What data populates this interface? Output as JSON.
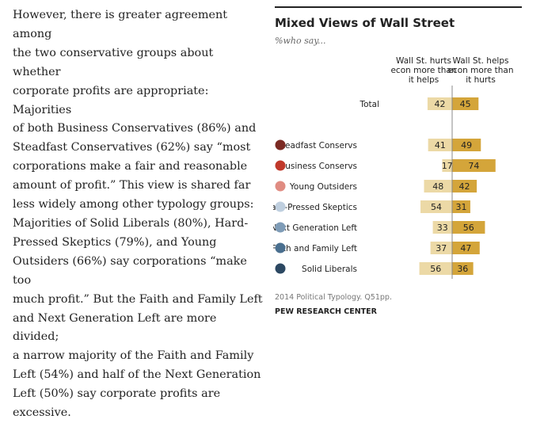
{
  "article": {
    "text": "However, there is greater agreement among\nthe two conservative groups about whether\ncorporate profits are appropriate: Majorities\nof both Business Conservatives (86%) and\nSteadfast Conservatives (62%) say “most\ncorporations make a fair and reasonable\namount of profit.” This view is shared far\nless widely among other typology groups:\nMajorities of Solid Liberals (80%), Hard-\nPressed Skeptics (79%), and Young\nOutsiders (66%) say corporations “make too\nmuch profit.” But the Faith and Family Left\nand Next Generation Left are more divided;\na narrow majority of the Faith and Family\nLeft (54%) and half of the Next Generation\nLeft (50%) say corporate profits are\nexcessive."
  },
  "chart_data": {
    "type": "bar",
    "title": "Mixed Views of Wall Street",
    "subtitle": "%who say...",
    "categories": [
      "Total",
      "Steadfast Conservs",
      "Business Conservs",
      "Young Outsiders",
      "Hard-Pressed Skeptics",
      "Next Generation Left",
      "Faith and Family Left",
      "Solid Liberals"
    ],
    "series": [
      {
        "name": "Wall St. hurts econ more than it helps",
        "values": [
          42,
          41,
          17,
          48,
          54,
          33,
          37,
          56
        ]
      },
      {
        "name": "Wall St. helps econ more than it hurts",
        "values": [
          45,
          49,
          74,
          42,
          31,
          56,
          47,
          36
        ]
      }
    ],
    "group_colors": [
      "",
      "#7b2a23",
      "#c0392b",
      "#e08c82",
      "#bfcfdf",
      "#7f9cb7",
      "#4a6f8f",
      "#2c4862"
    ],
    "bar_colors": {
      "hurts": "#ecd9a6",
      "helps": "#d4a53a"
    },
    "source": "2014 Political Typology. Q51pp.",
    "org": "PEW RESEARCH CENTER"
  }
}
